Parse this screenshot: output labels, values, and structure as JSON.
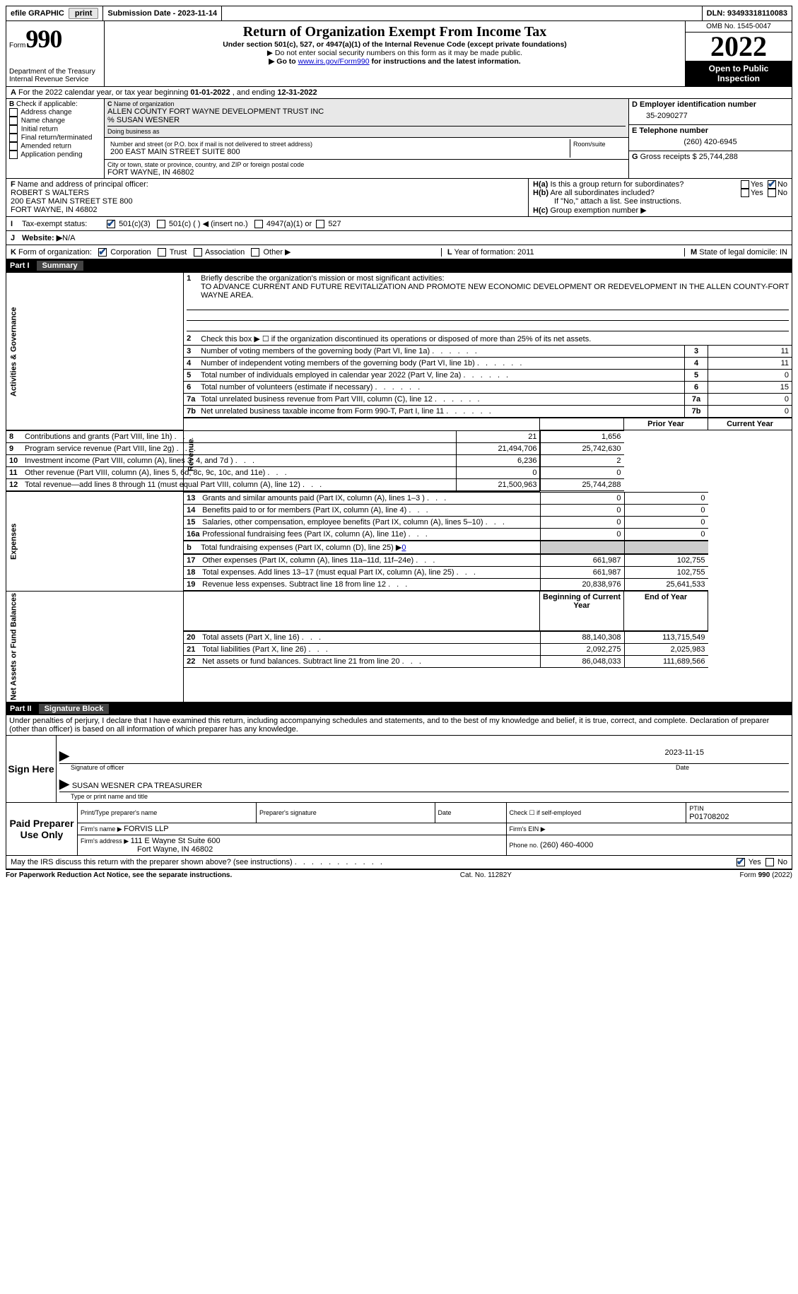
{
  "topbar": {
    "efile": "efile GRAPHIC",
    "print": "print",
    "submission_label": "Submission Date - ",
    "submission_date": "2023-11-14",
    "dln_label": "DLN: ",
    "dln": "93493318110083"
  },
  "header": {
    "form_label": "Form",
    "form_number": "990",
    "dept1": "Department of the Treasury",
    "dept2": "Internal Revenue Service",
    "title": "Return of Organization Exempt From Income Tax",
    "sub1": "Under section 501(c), 527, or 4947(a)(1) of the Internal Revenue Code (except private foundations)",
    "sub2": "▶ Do not enter social security numbers on this form as it may be made public.",
    "sub3_pre": "▶ Go to ",
    "sub3_link": "www.irs.gov/Form990",
    "sub3_post": " for instructions and the latest information.",
    "omb": "OMB No. 1545-0047",
    "year": "2022",
    "public": "Open to Public Inspection"
  },
  "row_a": {
    "a_label": "A",
    "text_pre": " For the 2022 calendar year, or tax year beginning ",
    "begin": "01-01-2022",
    "text_mid": " , and ending ",
    "end": "12-31-2022"
  },
  "section_b": {
    "b_label": "B",
    "b_title": " Check if applicable:",
    "opts": [
      "Address change",
      "Name change",
      "Initial return",
      "Final return/terminated",
      "Amended return",
      "Application pending"
    ]
  },
  "section_c": {
    "c_label": "C",
    "name_label": "Name of organization",
    "name1": "ALLEN COUNTY FORT WAYNE DEVELOPMENT TRUST INC",
    "name2": "% SUSAN WESNER",
    "dba_label": "Doing business as",
    "street_label": "Number and street (or P.O. box if mail is not delivered to street address)",
    "room_label": "Room/suite",
    "street": "200 EAST MAIN STREET SUITE 800",
    "city_label": "City or town, state or province, country, and ZIP or foreign postal code",
    "city": "FORT WAYNE, IN  46802"
  },
  "section_d": {
    "d_label": "D Employer identification number",
    "ein": "35-2090277",
    "e_label": "E Telephone number",
    "phone": "(260) 420-6945",
    "g_label": "G",
    "g_text": " Gross receipts $ ",
    "g_val": "25,744,288"
  },
  "section_f": {
    "f_label": "F",
    "f_text": " Name and address of principal officer:",
    "name": "ROBERT S WALTERS",
    "addr1": "200 EAST MAIN STREET STE 800",
    "addr2": "FORT WAYNE, IN  46802"
  },
  "section_h": {
    "ha_label": "H(a)",
    "ha_text": "  Is this a group return for subordinates?",
    "hb_label": "H(b)",
    "hb_text": "  Are all subordinates included?",
    "hb_note": "If \"No,\" attach a list. See instructions.",
    "hc_label": "H(c)",
    "hc_text": "  Group exemption number ▶",
    "yes": "Yes",
    "no": "No"
  },
  "section_i": {
    "i_label": "I",
    "i_text": "Tax-exempt status:",
    "o1": "501(c)(3)",
    "o2": "501(c) (   ) ◀ (insert no.)",
    "o3": "4947(a)(1) or",
    "o4": "527"
  },
  "section_j": {
    "j_label": "J",
    "j_text": "Website: ▶",
    "j_val": "  N/A"
  },
  "section_k": {
    "k_label": "K",
    "k_text": " Form of organization:",
    "o1": "Corporation",
    "o2": "Trust",
    "o3": "Association",
    "o4": "Other ▶",
    "l_label": "L",
    "l_text": " Year of formation: ",
    "l_val": "2011",
    "m_label": "M",
    "m_text": " State of legal domicile: ",
    "m_val": "IN"
  },
  "part1": {
    "label": "Part I",
    "title": "Summary",
    "l1_pre": "Briefly describe the organization's mission or most significant activities:",
    "l1_text": "TO ADVANCE CURRENT AND FUTURE REVITALIZATION AND PROMOTE NEW ECONOMIC DEVELOPMENT OR REDEVELOPMENT IN THE ALLEN COUNTY-FORT WAYNE AREA.",
    "l2": "Check this box ▶ ☐ if the organization discontinued its operations or disposed of more than 25% of its net assets.",
    "vert1": "Activities & Governance",
    "vert2": "Revenue",
    "vert3": "Expenses",
    "vert4": "Net Assets or Fund Balances",
    "rows_gov": [
      {
        "n": "3",
        "t": "Number of voting members of the governing body (Part VI, line 1a)",
        "v": "11"
      },
      {
        "n": "4",
        "t": "Number of independent voting members of the governing body (Part VI, line 1b)",
        "v": "11"
      },
      {
        "n": "5",
        "t": "Total number of individuals employed in calendar year 2022 (Part V, line 2a)",
        "v": "0"
      },
      {
        "n": "6",
        "t": "Total number of volunteers (estimate if necessary)",
        "v": "15"
      },
      {
        "n": "7a",
        "t": "Total unrelated business revenue from Part VIII, column (C), line 12",
        "v": "0"
      },
      {
        "n": "7b",
        "t": "Net unrelated business taxable income from Form 990-T, Part I, line 11",
        "v": "0"
      }
    ],
    "col_py": "Prior Year",
    "col_cy": "Current Year",
    "col_boy": "Beginning of Current Year",
    "col_eoy": "End of Year",
    "rows_rev": [
      {
        "n": "8",
        "t": "Contributions and grants (Part VIII, line 1h)",
        "py": "21",
        "cy": "1,656"
      },
      {
        "n": "9",
        "t": "Program service revenue (Part VIII, line 2g)",
        "py": "21,494,706",
        "cy": "25,742,630"
      },
      {
        "n": "10",
        "t": "Investment income (Part VIII, column (A), lines 3, 4, and 7d )",
        "py": "6,236",
        "cy": "2"
      },
      {
        "n": "11",
        "t": "Other revenue (Part VIII, column (A), lines 5, 6d, 8c, 9c, 10c, and 11e)",
        "py": "0",
        "cy": "0"
      },
      {
        "n": "12",
        "t": "Total revenue—add lines 8 through 11 (must equal Part VIII, column (A), line 12)",
        "py": "21,500,963",
        "cy": "25,744,288"
      }
    ],
    "rows_exp": [
      {
        "n": "13",
        "t": "Grants and similar amounts paid (Part IX, column (A), lines 1–3 )",
        "py": "0",
        "cy": "0"
      },
      {
        "n": "14",
        "t": "Benefits paid to or for members (Part IX, column (A), line 4)",
        "py": "0",
        "cy": "0"
      },
      {
        "n": "15",
        "t": "Salaries, other compensation, employee benefits (Part IX, column (A), lines 5–10)",
        "py": "0",
        "cy": "0"
      },
      {
        "n": "16a",
        "t": "Professional fundraising fees (Part IX, column (A), line 11e)",
        "py": "0",
        "cy": "0"
      }
    ],
    "row_16b": {
      "n": "b",
      "t": "Total fundraising expenses (Part IX, column (D), line 25) ▶",
      "v": "0"
    },
    "rows_exp2": [
      {
        "n": "17",
        "t": "Other expenses (Part IX, column (A), lines 11a–11d, 11f–24e)",
        "py": "661,987",
        "cy": "102,755"
      },
      {
        "n": "18",
        "t": "Total expenses. Add lines 13–17 (must equal Part IX, column (A), line 25)",
        "py": "661,987",
        "cy": "102,755"
      },
      {
        "n": "19",
        "t": "Revenue less expenses. Subtract line 18 from line 12",
        "py": "20,838,976",
        "cy": "25,641,533"
      }
    ],
    "rows_net": [
      {
        "n": "20",
        "t": "Total assets (Part X, line 16)",
        "py": "88,140,308",
        "cy": "113,715,549"
      },
      {
        "n": "21",
        "t": "Total liabilities (Part X, line 26)",
        "py": "2,092,275",
        "cy": "2,025,983"
      },
      {
        "n": "22",
        "t": "Net assets or fund balances. Subtract line 21 from line 20",
        "py": "86,048,033",
        "cy": "111,689,566"
      }
    ]
  },
  "part2": {
    "label": "Part II",
    "title": "Signature Block",
    "decl": "Under penalties of perjury, I declare that I have examined this return, including accompanying schedules and statements, and to the best of my knowledge and belief, it is true, correct, and complete. Declaration of preparer (other than officer) is based on all information of which preparer has any knowledge.",
    "sign_here": "Sign Here",
    "sig_officer": "Signature of officer",
    "sig_date": "Date",
    "sig_date_val": "2023-11-15",
    "sig_name": "SUSAN WESNER CPA TREASURER",
    "sig_name_label": "Type or print name and title",
    "paid": "Paid Preparer Use Only",
    "pp_name_label": "Print/Type preparer's name",
    "pp_sig_label": "Preparer's signature",
    "pp_date_label": "Date",
    "pp_check": "Check ☐ if self-employed",
    "pp_ptin_label": "PTIN",
    "pp_ptin": "P01708202",
    "firm_name_label": "Firm's name    ▶ ",
    "firm_name": "FORVIS LLP",
    "firm_ein_label": "Firm's EIN ▶",
    "firm_addr_label": "Firm's address ▶ ",
    "firm_addr1": "111 E Wayne St Suite 600",
    "firm_addr2": "Fort Wayne, IN  46802",
    "firm_phone_label": "Phone no. ",
    "firm_phone": "(260) 460-4000",
    "discuss": "May the IRS discuss this return with the preparer shown above? (see instructions)"
  },
  "footer": {
    "l": "For Paperwork Reduction Act Notice, see the separate instructions.",
    "m": "Cat. No. 11282Y",
    "r": "Form 990 (2022)"
  }
}
